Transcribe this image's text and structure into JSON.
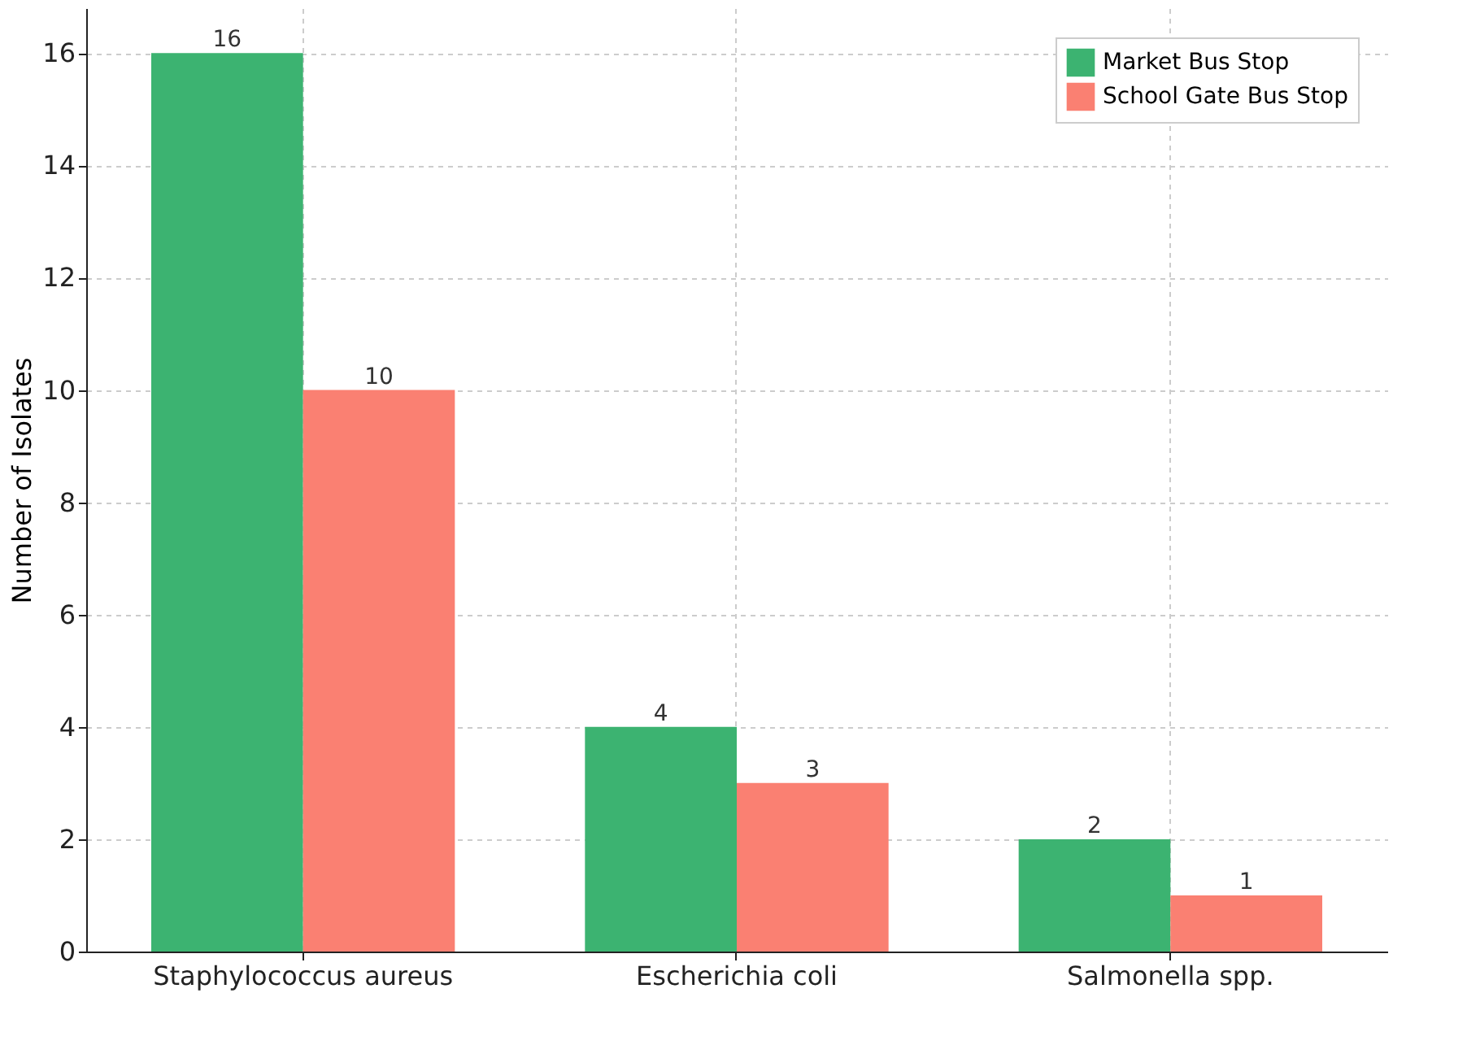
{
  "chart_data": {
    "type": "bar",
    "ylabel": "Number of Isolates",
    "categories": [
      "Staphylococcus aureus",
      "Escherichia coli",
      "Salmonella spp."
    ],
    "series": [
      {
        "name": "Market Bus Stop",
        "color": "#3cb371",
        "values": [
          16,
          4,
          2
        ]
      },
      {
        "name": "School Gate Bus Stop",
        "color": "#fa8072",
        "values": [
          10,
          3,
          1
        ]
      }
    ],
    "ylim": [
      0,
      16.8
    ],
    "yticks": [
      0,
      2,
      4,
      6,
      8,
      10,
      12,
      14,
      16
    ],
    "grid": true,
    "legend": "top right",
    "data_labels": true
  }
}
